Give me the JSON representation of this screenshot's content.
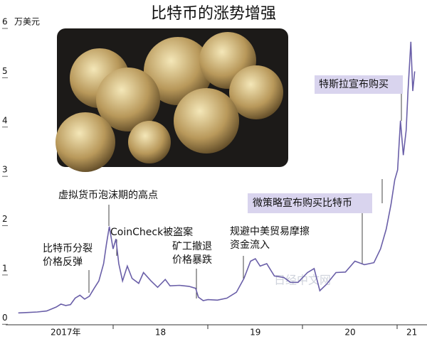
{
  "chart_data": {
    "type": "line",
    "title": "比特币的涨势增强",
    "y_unit": "万美元",
    "watermark": "日经中文网",
    "color": "#6a5fa8",
    "x": [
      2017.0,
      2017.1,
      2017.2,
      2017.3,
      2017.4,
      2017.45,
      2017.5,
      2017.55,
      2017.6,
      2017.65,
      2017.7,
      2017.75,
      2017.8,
      2017.85,
      2017.9,
      2017.93,
      2017.96,
      2018.0,
      2018.03,
      2018.06,
      2018.1,
      2018.15,
      2018.2,
      2018.27,
      2018.32,
      2018.4,
      2018.47,
      2018.55,
      2018.6,
      2018.7,
      2018.8,
      2018.87,
      2018.9,
      2018.95,
      2019.0,
      2019.1,
      2019.2,
      2019.3,
      2019.38,
      2019.45,
      2019.5,
      2019.55,
      2019.62,
      2019.7,
      2019.8,
      2019.87,
      2019.95,
      2020.05,
      2020.12,
      2020.18,
      2020.25,
      2020.35,
      2020.45,
      2020.55,
      2020.65,
      2020.75,
      2020.82,
      2020.88,
      2020.93,
      2020.97,
      2021.0,
      2021.03,
      2021.06,
      2021.09,
      2021.11,
      2021.14,
      2021.16,
      2021.18
    ],
    "values": [
      0.1,
      0.11,
      0.12,
      0.14,
      0.22,
      0.28,
      0.25,
      0.27,
      0.4,
      0.46,
      0.38,
      0.44,
      0.6,
      0.75,
      1.1,
      1.5,
      1.85,
      1.4,
      1.6,
      1.1,
      0.75,
      1.05,
      0.8,
      0.7,
      0.92,
      0.75,
      0.62,
      0.78,
      0.65,
      0.66,
      0.64,
      0.6,
      0.42,
      0.35,
      0.37,
      0.36,
      0.4,
      0.52,
      0.8,
      1.15,
      1.2,
      1.05,
      1.1,
      0.85,
      0.82,
      0.72,
      0.72,
      0.92,
      1.0,
      0.55,
      0.68,
      0.92,
      0.93,
      1.15,
      1.08,
      1.12,
      1.4,
      1.8,
      2.3,
      2.8,
      3.0,
      4.0,
      3.3,
      3.8,
      4.6,
      5.6,
      4.6,
      5.0
    ],
    "xlim": [
      2016.95,
      2021.25
    ],
    "xticks": [
      {
        "value": 2017.5,
        "label": "2017年"
      },
      {
        "value": 2018.5,
        "label": "18"
      },
      {
        "value": 2019.5,
        "label": "19"
      },
      {
        "value": 2020.5,
        "label": "20"
      },
      {
        "value": 2021.15,
        "label": "21"
      }
    ],
    "ylim": [
      -0.14,
      6
    ],
    "yticks": [
      0,
      1,
      2,
      3,
      4,
      5,
      6
    ],
    "annotations": [
      {
        "lines": [
          "虚拟货币泡沫期的高点"
        ]
      },
      {
        "lines": [
          "比特币分裂",
          "价格反弹"
        ]
      },
      {
        "lines": [
          "CoinCheck被盗案"
        ]
      },
      {
        "lines": [
          "矿工撤退",
          "价格暴跌"
        ]
      },
      {
        "lines": [
          "规避中美贸易摩擦",
          "资金流入"
        ]
      },
      {
        "lines": [
          "微策略宣布购买比特币"
        ]
      },
      {
        "lines": [
          "特斯拉宣布购买"
        ]
      }
    ]
  }
}
